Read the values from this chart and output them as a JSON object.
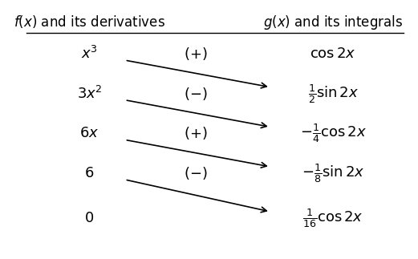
{
  "title_left": "$f(x)$ and its derivatives",
  "title_right": "$g(x)$ and its integrals",
  "left_col": [
    "$x^3$",
    "$3x^2$",
    "$6x$",
    "$6$",
    "$0$"
  ],
  "sign_col": [
    "$(+)$",
    "$(-)$",
    "$(+)$",
    "$(-)$",
    ""
  ],
  "right_col": [
    "$\\cos 2x$",
    "$\\frac{1}{2}\\sin 2x$",
    "$-\\frac{1}{4}\\cos 2x$",
    "$-\\frac{1}{8}\\sin 2x$",
    "$\\frac{1}{16}\\cos 2x$"
  ],
  "bg_color": "#ffffff",
  "text_color": "#000000",
  "arrow_color": "#000000",
  "fontsize": 13,
  "title_fontsize": 12
}
